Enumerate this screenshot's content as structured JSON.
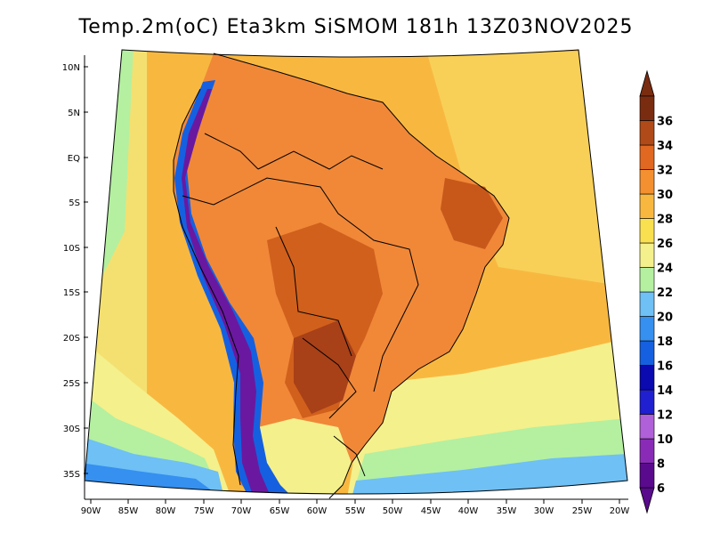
{
  "title": "Temp.2m(oC) Eta3km SiSMOM 181h 13Z03NOV2025",
  "y_ticks": [
    "10N",
    "5N",
    "EQ",
    "5S",
    "10S",
    "15S",
    "20S",
    "25S",
    "30S",
    "35S"
  ],
  "x_ticks": [
    "90W",
    "85W",
    "80W",
    "75W",
    "70W",
    "65W",
    "60W",
    "55W",
    "50W",
    "45W",
    "40W",
    "35W",
    "30W",
    "25W",
    "20W"
  ],
  "colorbar": {
    "labels": [
      "6",
      "8",
      "10",
      "12",
      "14",
      "16",
      "18",
      "20",
      "22",
      "24",
      "26",
      "28",
      "30",
      "32",
      "34",
      "36"
    ],
    "colors": [
      "#5a0a8c",
      "#8a2bb8",
      "#b060d8",
      "#2020d0",
      "#0a0ab0",
      "#1560e0",
      "#3590f0",
      "#6ec0f5",
      "#b4f0a0",
      "#f4f08c",
      "#f8e050",
      "#f8b840",
      "#f49030",
      "#e06820",
      "#b04a18",
      "#7a2c10"
    ],
    "ocean": "#f8b840",
    "land": "#f08838"
  },
  "chart_data": {
    "type": "map",
    "variable": "Temp.2m(oC)",
    "model": "Eta3km SiSMOM",
    "forecast": "181h",
    "valid": "13Z03NOV2025",
    "lon_range": [
      -90,
      -20
    ],
    "lat_range": [
      -38,
      12
    ],
    "color_scale_min": 6,
    "color_scale_max": 36,
    "color_scale_step": 2
  }
}
